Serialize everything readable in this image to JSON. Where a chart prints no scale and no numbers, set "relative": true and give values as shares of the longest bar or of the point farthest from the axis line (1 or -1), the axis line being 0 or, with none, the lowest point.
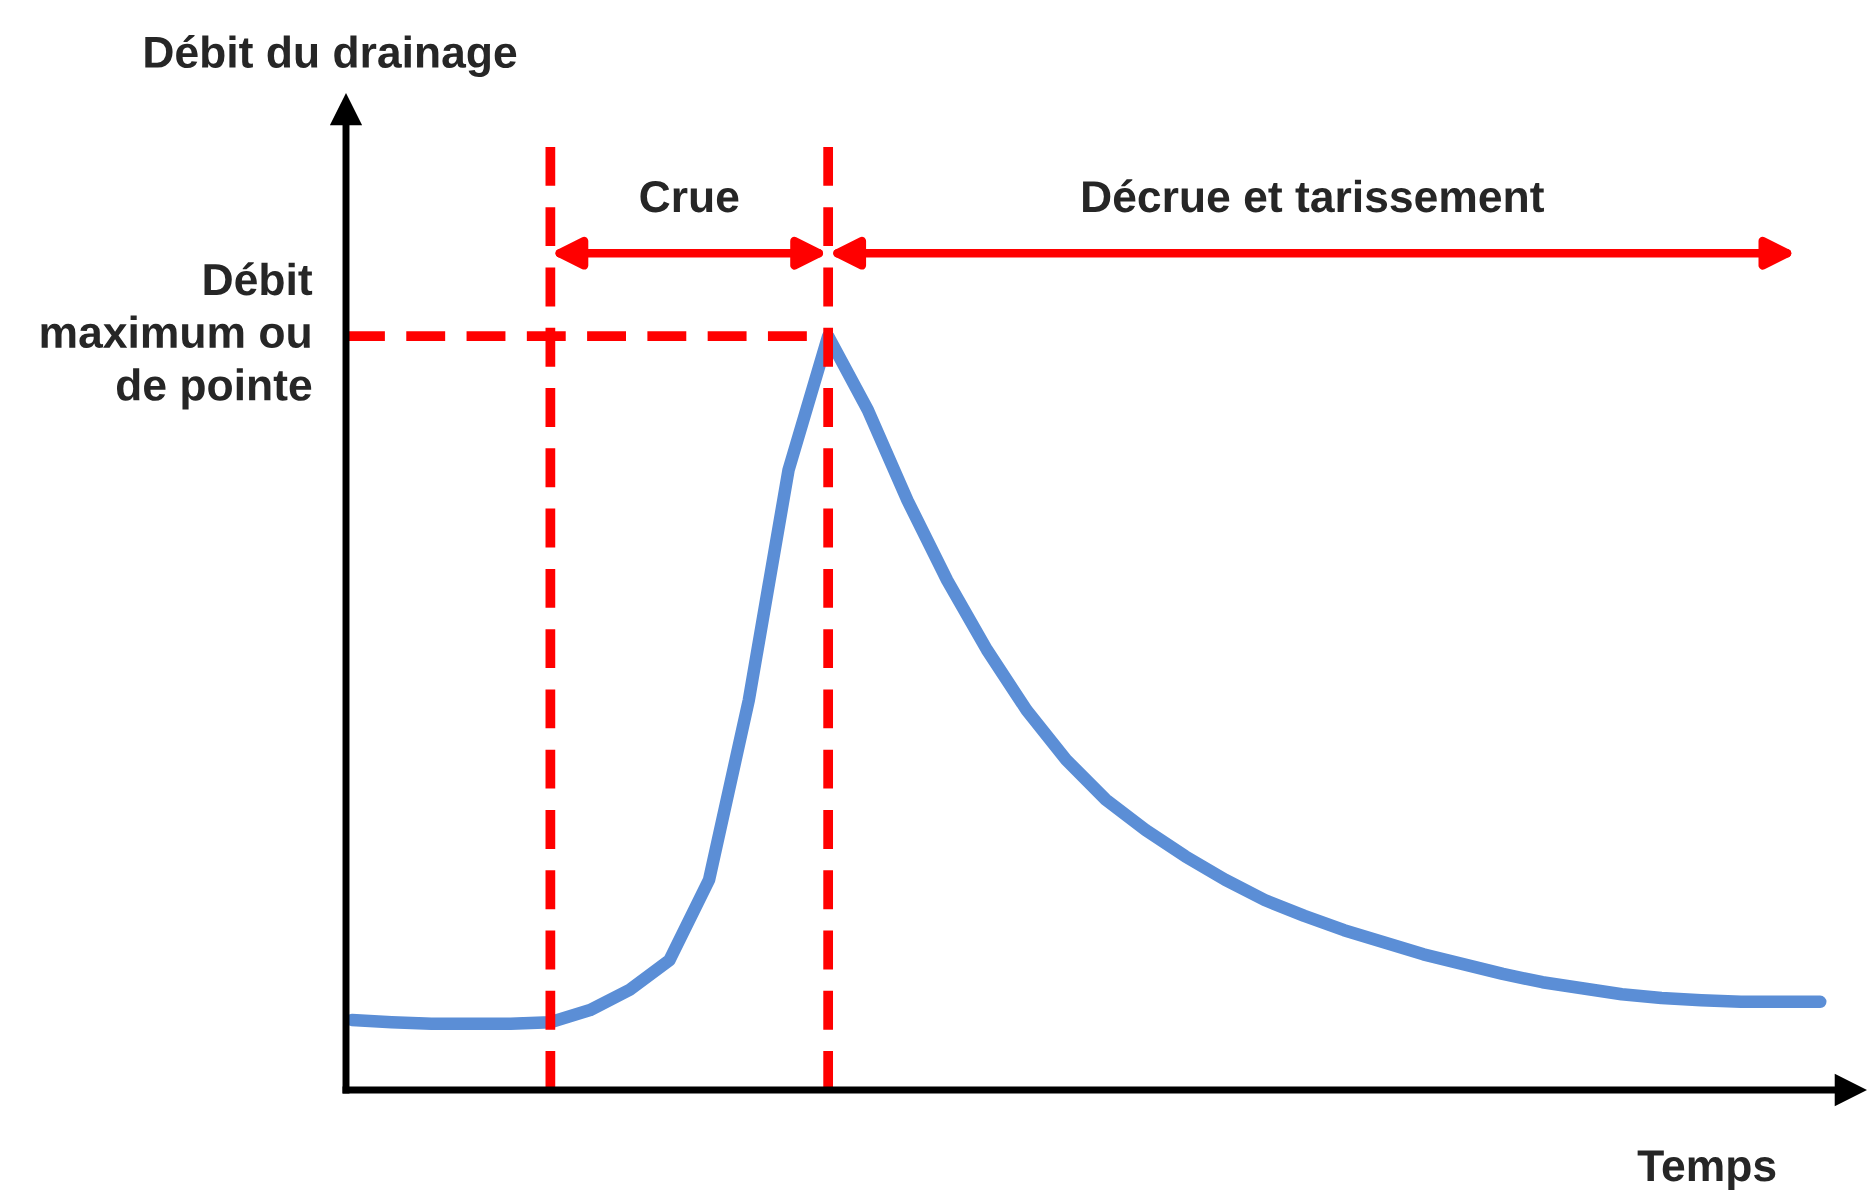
{
  "chart_data": {
    "type": "line",
    "relative": true,
    "xlabel": "Temps",
    "annotations": [
      "Débit du drainage",
      "Crue",
      "Décrue et tarissement"
    ],
    "categories": [
      null,
      null,
      null,
      null,
      null,
      null,
      null,
      null,
      null,
      null,
      null,
      null,
      null,
      null,
      null,
      null,
      null,
      null,
      null,
      null,
      null,
      null,
      null,
      null,
      null,
      null,
      null,
      null,
      null,
      null,
      null,
      null,
      null,
      null,
      null,
      null,
      null,
      null
    ],
    "series": [
      {
        "color": "#5b8ed6",
        "values": [
          0.093,
          0.09,
          0.088,
          0.088,
          0.088,
          0.09,
          0.106,
          0.133,
          0.172,
          0.279,
          0.517,
          0.822,
          1.0,
          0.902,
          0.782,
          0.676,
          0.584,
          0.504,
          0.438,
          0.385,
          0.345,
          0.31,
          0.279,
          0.252,
          0.231,
          0.212,
          0.196,
          0.18,
          0.167,
          0.154,
          0.143,
          0.135,
          0.127,
          0.122,
          0.119,
          0.117,
          0.117,
          0.117
        ]
      }
    ],
    "ref_lines": [
      {
        "axis": "y",
        "value": 1.0,
        "label": "Débit\nmaximum ou\nde pointe",
        "color": "#ff0000",
        "line_style": "dashed"
      }
    ],
    "tick_labels": false
  }
}
